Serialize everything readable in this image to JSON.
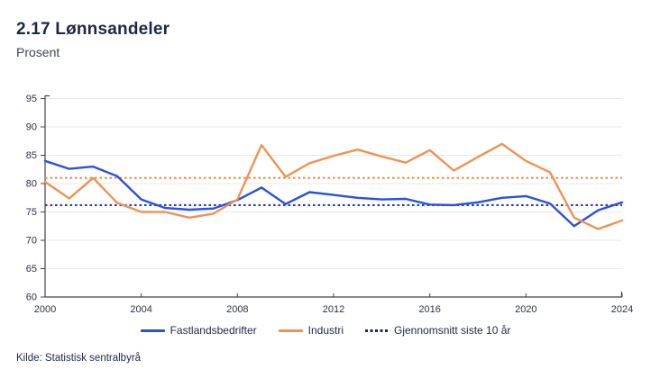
{
  "header": {
    "title": "2.17 Lønnsandeler",
    "subtitle": "Prosent"
  },
  "footer": {
    "source": "Kilde: Statistisk sentralbyrå"
  },
  "colors": {
    "fastland": "#2b4fe0",
    "industri": "#ef9254",
    "fastland_avg": "#1e3bd2",
    "industri_avg": "#ee8f4c",
    "legend_dotted": "#1c2b5e",
    "grid": "#e8e8e8",
    "axis": "#444444",
    "tick_text": "#2b3245"
  },
  "legend": [
    {
      "label": "Fastlandsbedrifter",
      "type": "line",
      "color_key": "fastland"
    },
    {
      "label": "Industri",
      "type": "line",
      "color_key": "industri"
    },
    {
      "label": "Gjennomsnitt siste 10 år",
      "type": "dotted",
      "color_key": "legend_dotted"
    }
  ],
  "chart_data": {
    "type": "line",
    "title": "2.17 Lønnsandeler",
    "ylabel": "Prosent",
    "ylim": [
      60,
      95
    ],
    "ytick_step": 5,
    "grid": true,
    "legend_position": "bottom",
    "xticks": [
      2000,
      2004,
      2008,
      2012,
      2016,
      2020,
      2024
    ],
    "x": [
      2000,
      2001,
      2002,
      2003,
      2004,
      2005,
      2006,
      2007,
      2008,
      2009,
      2010,
      2011,
      2012,
      2013,
      2014,
      2015,
      2016,
      2017,
      2018,
      2019,
      2020,
      2021,
      2022,
      2023,
      2024
    ],
    "series": [
      {
        "name": "Fastlandsbedrifter",
        "color_key": "fastland",
        "values": [
          84.0,
          82.6,
          83.0,
          81.3,
          77.2,
          75.7,
          75.4,
          75.6,
          77.1,
          79.3,
          76.4,
          78.5,
          78.0,
          77.5,
          77.2,
          77.3,
          76.3,
          76.2,
          76.7,
          77.5,
          77.8,
          76.5,
          72.5,
          75.3,
          76.7
        ]
      },
      {
        "name": "Industri",
        "color_key": "industri",
        "values": [
          80.3,
          77.4,
          81.0,
          76.6,
          75.0,
          75.0,
          74.0,
          74.7,
          77.2,
          86.8,
          81.2,
          83.6,
          84.9,
          86.0,
          84.8,
          83.7,
          85.9,
          82.3,
          84.7,
          87.0,
          84.0,
          82.0,
          74.0,
          72.0,
          73.5
        ]
      }
    ],
    "reference_lines": [
      {
        "name": "Gjennomsnitt siste 10 år – Fastlandsbedrifter",
        "value": 76.2,
        "style": "dotted",
        "color_key": "fastland_avg"
      },
      {
        "name": "Gjennomsnitt siste 10 år – Industri",
        "value": 81.0,
        "style": "dotted",
        "color_key": "industri_avg"
      }
    ]
  }
}
